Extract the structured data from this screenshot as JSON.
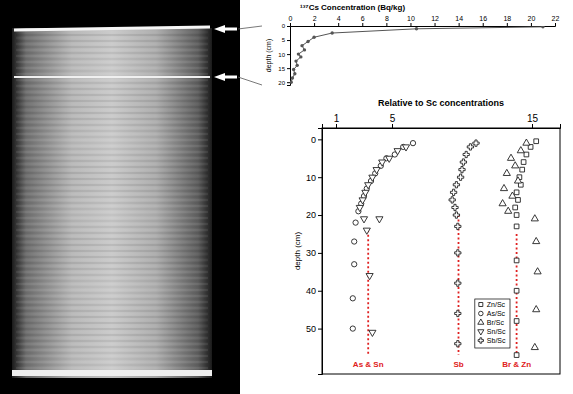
{
  "chart_data": [
    {
      "type": "line",
      "title": "¹³⁷Cs Concentration (Bq/kg)",
      "ylabel": "depth (cm)",
      "x": [
        21,
        10.5,
        3.5,
        2,
        1.5,
        1,
        1.2,
        0.7,
        0.9,
        0.5,
        0.6,
        0.3,
        0.4,
        0.2,
        0.1
      ],
      "values": [
        0.3,
        1,
        2.5,
        4,
        5.5,
        7,
        8.5,
        10,
        11,
        12.5,
        14,
        15.5,
        17,
        18.5,
        20
      ],
      "color": "#555555",
      "marker": "circle",
      "xlim": [
        0,
        22
      ],
      "xticks": [
        0,
        2,
        4,
        6,
        8,
        10,
        12,
        14,
        16,
        18,
        20,
        22
      ],
      "ylim": [
        0,
        21
      ],
      "yticks": [
        0,
        5,
        10,
        15,
        20
      ]
    },
    {
      "type": "scatter",
      "title": "Relative to Sc concentrations",
      "ylabel": "depth (cm)",
      "xlim": [
        0,
        17
      ],
      "xticks": [
        1,
        5,
        15
      ],
      "ylim": [
        -3,
        62
      ],
      "yticks": [
        0,
        10,
        20,
        30,
        40,
        50
      ],
      "legend": "lower right",
      "series": [
        {
          "name": "Zn/Sc",
          "color": "#222222",
          "marker": "square",
          "x": [
            15.3,
            14.9,
            14.6,
            14.4,
            14.3,
            14.1,
            14.2,
            13.9,
            14.0,
            13.8,
            13.9,
            13.9,
            13.9,
            13.9,
            13.9,
            13.9
          ],
          "values": [
            0.5,
            2,
            4,
            6,
            8,
            10,
            12,
            14,
            16,
            18,
            20,
            23,
            32,
            40,
            48,
            57
          ]
        },
        {
          "name": "As/Sc",
          "color": "#222222",
          "marker": "circle",
          "x": [
            6.5,
            5.8,
            5.2,
            4.6,
            4.2,
            3.8,
            3.5,
            3.2,
            3.0,
            2.8,
            2.6,
            2.4,
            2.3,
            2.3,
            2.2,
            2.2
          ],
          "values": [
            1,
            2,
            4,
            5,
            7,
            9,
            11,
            13,
            15,
            17,
            19,
            22,
            27,
            33,
            42,
            50
          ]
        },
        {
          "name": "Br/Sc",
          "color": "#222222",
          "marker": "triangle-up",
          "x": [
            14.6,
            14.2,
            13.5,
            13.8,
            13.2,
            14.0,
            13.0,
            13.6,
            12.9,
            13.3,
            15.2,
            15.3,
            15.4,
            15.3,
            15.2
          ],
          "values": [
            1,
            3,
            5,
            7,
            9,
            11,
            13,
            15,
            17,
            19,
            21,
            27,
            35,
            45,
            55
          ]
        },
        {
          "name": "Sn/Sc",
          "color": "#222222",
          "marker": "triangle-down",
          "x": [
            6.0,
            5.4,
            4.8,
            4.3,
            3.9,
            3.6,
            3.3,
            3.1,
            2.9,
            2.7,
            3.0,
            3.2,
            4.1,
            3.4,
            3.6
          ],
          "values": [
            2,
            3,
            5,
            6,
            8,
            10,
            12,
            14,
            16,
            18,
            21,
            24,
            21,
            36,
            51
          ]
        },
        {
          "name": "Sb/Sc",
          "color": "#222222",
          "marker": "cross",
          "x": [
            11.0,
            10.6,
            10.3,
            10.1,
            10.0,
            9.9,
            9.6,
            9.4,
            9.3,
            9.5,
            9.6,
            9.7,
            9.7,
            9.7,
            9.7,
            9.7
          ],
          "values": [
            1,
            2,
            4,
            6,
            8,
            10,
            12,
            14,
            16,
            18,
            20,
            23,
            30,
            38,
            46,
            54
          ]
        }
      ],
      "annotations": [
        {
          "text": "As & Sn",
          "x": 3.3,
          "y": [
            24,
            57
          ],
          "color": "#e02020"
        },
        {
          "text": "Sb",
          "x": 9.75,
          "y": [
            20,
            57
          ],
          "color": "#e02020"
        },
        {
          "text": "Br & Zn",
          "x": 13.9,
          "y": [
            25,
            57
          ],
          "color": "#e02020"
        }
      ]
    }
  ]
}
